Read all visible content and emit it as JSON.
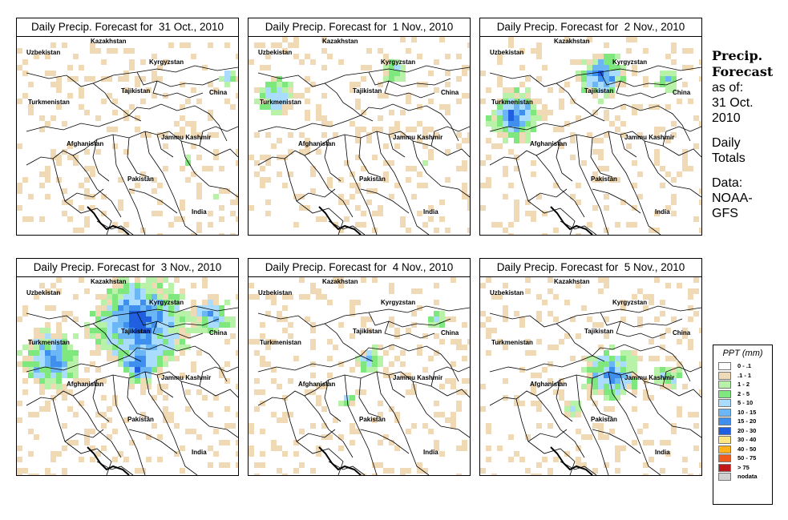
{
  "panels": [
    {
      "title": "Daily Precip. Forecast for  31 Oct., 2010",
      "intensity": 1
    },
    {
      "title": "Daily Precip. Forecast for  1 Nov., 2010",
      "intensity": 2
    },
    {
      "title": "Daily Precip. Forecast for  2 Nov., 2010",
      "intensity": 4
    },
    {
      "title": "Daily Precip. Forecast for  3 Nov., 2010",
      "intensity": 6
    },
    {
      "title": "Daily Precip. Forecast for  4 Nov., 2010",
      "intensity": 3
    },
    {
      "title": "Daily Precip. Forecast for  5 Nov., 2010",
      "intensity": 5
    }
  ],
  "map_labels": {
    "kazakhstan": "Kazakhstan",
    "uzbekistan": "Uzbekistan",
    "kyrgyzstan": "Kyrgyzstan",
    "tajikistan": "Tajikistan",
    "turkmenistan": "Turkmenistan",
    "china": "China",
    "afghanistan": "Afghanistan",
    "jammu_kashmir": "Jammu Kashmir",
    "pakistan": "Pakistan",
    "india": "India"
  },
  "side": {
    "heading1": "Precip.",
    "heading2": "Forecast",
    "asof": "as of:",
    "date1": "31 Oct.",
    "date2": "2010",
    "totals1": "Daily",
    "totals2": "Totals",
    "data1": "Data:",
    "data2": "NOAA-",
    "data3": "GFS"
  },
  "legend": {
    "title": "PPT (mm)",
    "items": [
      {
        "label": "0 - .1",
        "color": "#ffffff"
      },
      {
        "label": ".1 - 1",
        "color": "#f0d9b5"
      },
      {
        "label": "1 - 2",
        "color": "#b8f2a8"
      },
      {
        "label": "2 - 5",
        "color": "#7ee87e"
      },
      {
        "label": "5 - 10",
        "color": "#a9dcff"
      },
      {
        "label": "10 - 15",
        "color": "#6bb6f5"
      },
      {
        "label": "15 - 20",
        "color": "#3f8fef"
      },
      {
        "label": "20 - 30",
        "color": "#1f5fe0"
      },
      {
        "label": "30 - 40",
        "color": "#ffe680"
      },
      {
        "label": "40 - 50",
        "color": "#ffb21a"
      },
      {
        "label": "50 - 75",
        "color": "#f05a1a"
      },
      {
        "label": "> 75",
        "color": "#c01818"
      },
      {
        "label": "nodata",
        "color": "#d0d0d0"
      }
    ]
  }
}
